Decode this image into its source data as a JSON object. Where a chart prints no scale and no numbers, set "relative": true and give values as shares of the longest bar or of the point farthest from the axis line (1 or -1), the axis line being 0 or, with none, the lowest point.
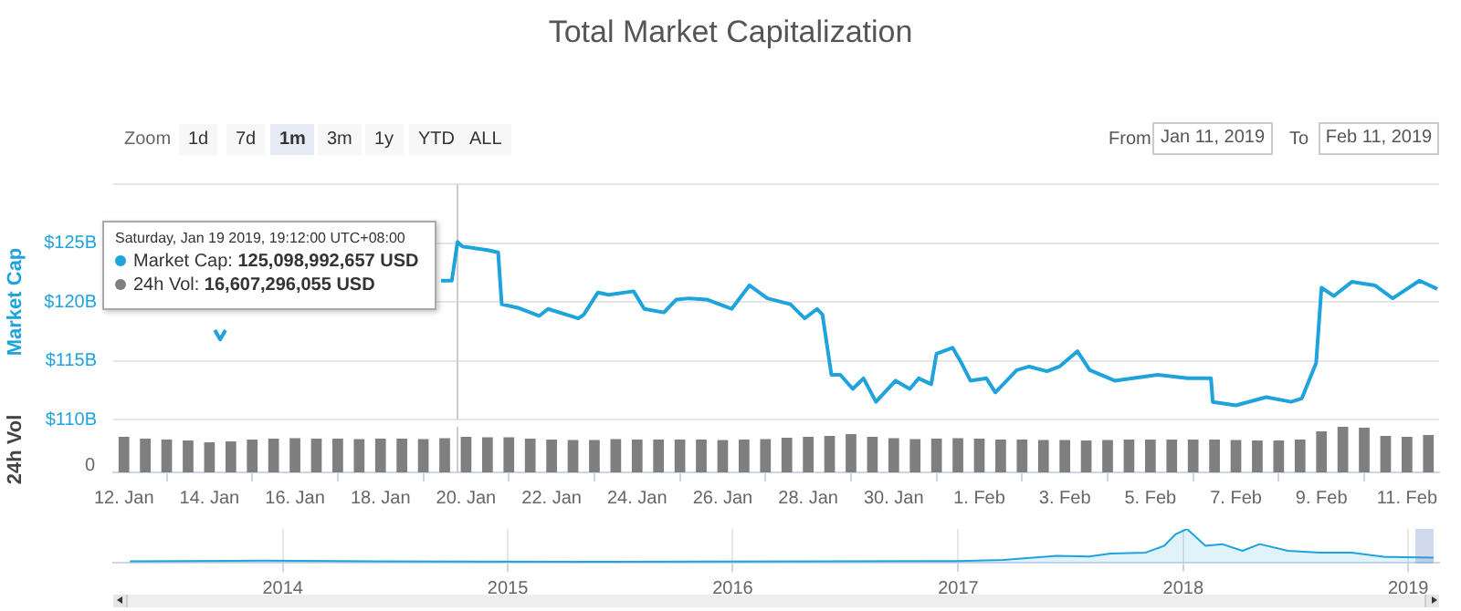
{
  "chart_data": [
    {
      "type": "line",
      "title": "Total Market Capitalization",
      "ylabel": "Market Cap",
      "color": "#1fa3dc",
      "grid": "y",
      "tick_labels": "y",
      "annotations": [
        "Zoom",
        "1d",
        "7d",
        "1m",
        "3m",
        "1y",
        "YTD",
        "ALL",
        "From",
        "Jan 11, 2019",
        "To",
        "Feb 11, 2019",
        "Saturday, Jan 19 2019, 19:12:00 UTC+08:00",
        "Market Cap: 125,098,992,657 USD",
        "24h Vol: 16,607,296,055 USD"
      ],
      "xlim": [
        "2019-01-11T18:00",
        "2019-02-11T18:00"
      ],
      "ylim": [
        110,
        130
      ],
      "yticks": [
        {
          "value": 110,
          "label": "$110B"
        },
        {
          "value": 115,
          "label": "$115B"
        },
        {
          "value": 120,
          "label": "$120B"
        },
        {
          "value": 125,
          "label": "$125B"
        },
        {
          "value": 130,
          "label": null
        }
      ],
      "ref_lines": [
        {
          "axis": "x",
          "value": "2019-01-19T19:12",
          "color": "#cccccc"
        }
      ],
      "x": [
        "2019-01-14T03:00",
        "2019-01-14T06:00",
        "2019-01-14T09:00",
        "2019-01-16T00:00",
        "2019-01-19T10:00",
        "2019-01-19T16:00",
        "2019-01-19T19:12",
        "2019-01-19T22:00",
        "2019-01-20T12:00",
        "2019-01-20T18:00",
        "2019-01-20T20:00",
        "2019-01-21T05:00",
        "2019-01-21T17:00",
        "2019-01-21T22:00",
        "2019-01-22T15:00",
        "2019-01-22T18:00",
        "2019-01-23T02:00",
        "2019-01-23T08:00",
        "2019-01-23T22:00",
        "2019-01-24T04:00",
        "2019-01-24T15:00",
        "2019-01-24T22:00",
        "2019-01-25T05:00",
        "2019-01-25T15:00",
        "2019-01-26T05:00",
        "2019-01-26T15:00",
        "2019-01-27T01:00",
        "2019-01-27T14:00",
        "2019-01-27T22:00",
        "2019-01-28T05:00",
        "2019-01-28T08:00",
        "2019-01-28T13:00",
        "2019-01-28T18:00",
        "2019-01-29T01:00",
        "2019-01-29T07:00",
        "2019-01-29T14:00",
        "2019-01-30T01:00",
        "2019-01-30T09:00",
        "2019-01-30T14:00",
        "2019-01-30T21:00",
        "2019-01-31T00:00",
        "2019-01-31T09:00",
        "2019-01-31T14:00",
        "2019-01-31T19:00",
        "2019-02-01T04:00",
        "2019-02-01T09:00",
        "2019-02-01T21:00",
        "2019-02-02T04:00",
        "2019-02-02T14:00",
        "2019-02-02T21:00",
        "2019-02-03T07:00",
        "2019-02-03T14:00",
        "2019-02-04T04:00",
        "2019-02-05T04:00",
        "2019-02-05T21:00",
        "2019-02-06T10:00",
        "2019-02-06T11:00",
        "2019-02-07T00:00",
        "2019-02-07T17:00",
        "2019-02-08T07:00",
        "2019-02-08T13:00",
        "2019-02-08T21:00",
        "2019-02-09T00:00",
        "2019-02-09T07:00",
        "2019-02-09T17:00",
        "2019-02-10T06:00",
        "2019-02-10T16:00",
        "2019-02-11T07:00",
        "2019-02-11T17:00"
      ],
      "values": [
        117.6,
        116.8,
        117.6,
        null,
        121.8,
        121.8,
        125.1,
        124.7,
        124.4,
        124.2,
        119.8,
        119.5,
        118.8,
        119.4,
        118.6,
        118.9,
        120.8,
        120.6,
        120.9,
        119.4,
        119.1,
        120.2,
        120.3,
        120.2,
        119.4,
        121.4,
        120.3,
        119.8,
        118.6,
        119.4,
        118.9,
        113.8,
        113.8,
        112.6,
        113.5,
        111.5,
        113.3,
        112.6,
        113.5,
        113.0,
        115.6,
        116.1,
        114.8,
        113.3,
        113.5,
        112.3,
        114.2,
        114.5,
        114.1,
        114.5,
        115.8,
        114.2,
        113.3,
        113.8,
        113.5,
        113.5,
        111.5,
        111.2,
        111.9,
        111.5,
        111.8,
        114.8,
        121.2,
        120.5,
        121.7,
        121.4,
        120.3,
        121.8,
        121.1
      ]
    },
    {
      "type": "bar",
      "relative": true,
      "ylabel": "24h Vol",
      "color": "#7f7f7f",
      "tick_labels": "x",
      "annotations": [
        "0"
      ],
      "ref_lines": [
        {
          "axis": "x",
          "value": "2019-01-19T19:12",
          "color": "#cccccc"
        }
      ],
      "xlim": [
        "2019-01-11T18:00",
        "2019-02-11T18:00"
      ],
      "xticks": [
        {
          "value": "2019-01-12",
          "label": "12. Jan"
        },
        {
          "value": "2019-01-14",
          "label": "14. Jan"
        },
        {
          "value": "2019-01-16",
          "label": "16. Jan"
        },
        {
          "value": "2019-01-18",
          "label": "18. Jan"
        },
        {
          "value": "2019-01-20",
          "label": "20. Jan"
        },
        {
          "value": "2019-01-22",
          "label": "22. Jan"
        },
        {
          "value": "2019-01-24",
          "label": "24. Jan"
        },
        {
          "value": "2019-01-26",
          "label": "26. Jan"
        },
        {
          "value": "2019-01-28",
          "label": "28. Jan"
        },
        {
          "value": "2019-01-30",
          "label": "30. Jan"
        },
        {
          "value": "2019-02-01",
          "label": "1. Feb"
        },
        {
          "value": "2019-02-03",
          "label": "3. Feb"
        },
        {
          "value": "2019-02-05",
          "label": "5. Feb"
        },
        {
          "value": "2019-02-07",
          "label": "7. Feb"
        },
        {
          "value": "2019-02-09",
          "label": "9. Feb"
        },
        {
          "value": "2019-02-11",
          "label": "11. Feb"
        }
      ],
      "x": [
        "2019-01-12T00:00",
        "2019-01-12T12:00",
        "2019-01-13T00:00",
        "2019-01-13T12:00",
        "2019-01-14T00:00",
        "2019-01-14T12:00",
        "2019-01-15T00:00",
        "2019-01-15T12:00",
        "2019-01-16T00:00",
        "2019-01-16T12:00",
        "2019-01-17T00:00",
        "2019-01-17T12:00",
        "2019-01-18T00:00",
        "2019-01-18T12:00",
        "2019-01-19T00:00",
        "2019-01-19T12:00",
        "2019-01-20T00:00",
        "2019-01-20T12:00",
        "2019-01-21T00:00",
        "2019-01-21T12:00",
        "2019-01-22T00:00",
        "2019-01-22T12:00",
        "2019-01-23T00:00",
        "2019-01-23T12:00",
        "2019-01-24T00:00",
        "2019-01-24T12:00",
        "2019-01-25T00:00",
        "2019-01-25T12:00",
        "2019-01-26T00:00",
        "2019-01-26T12:00",
        "2019-01-27T00:00",
        "2019-01-27T12:00",
        "2019-01-28T00:00",
        "2019-01-28T12:00",
        "2019-01-29T00:00",
        "2019-01-29T12:00",
        "2019-01-30T00:00",
        "2019-01-30T12:00",
        "2019-01-31T00:00",
        "2019-01-31T12:00",
        "2019-02-01T00:00",
        "2019-02-01T12:00",
        "2019-02-02T00:00",
        "2019-02-02T12:00",
        "2019-02-03T00:00",
        "2019-02-03T12:00",
        "2019-02-04T00:00",
        "2019-02-04T12:00",
        "2019-02-05T00:00",
        "2019-02-05T12:00",
        "2019-02-06T00:00",
        "2019-02-06T12:00",
        "2019-02-07T00:00",
        "2019-02-07T12:00",
        "2019-02-08T00:00",
        "2019-02-08T12:00",
        "2019-02-09T00:00",
        "2019-02-09T12:00",
        "2019-02-10T00:00",
        "2019-02-10T12:00",
        "2019-02-11T00:00",
        "2019-02-11T12:00"
      ],
      "values": [
        0.78,
        0.74,
        0.72,
        0.7,
        0.66,
        0.68,
        0.72,
        0.74,
        0.75,
        0.74,
        0.74,
        0.73,
        0.74,
        0.74,
        0.73,
        0.75,
        0.78,
        0.77,
        0.77,
        0.74,
        0.72,
        0.71,
        0.71,
        0.73,
        0.72,
        0.72,
        0.72,
        0.72,
        0.71,
        0.72,
        0.73,
        0.76,
        0.78,
        0.8,
        0.84,
        0.78,
        0.75,
        0.73,
        0.74,
        0.75,
        0.74,
        0.72,
        0.72,
        0.71,
        0.71,
        0.7,
        0.71,
        0.72,
        0.72,
        0.72,
        0.72,
        0.72,
        0.71,
        0.7,
        0.7,
        0.72,
        0.9,
        1.0,
        0.98,
        0.8,
        0.78,
        0.82
      ]
    },
    {
      "type": "area",
      "relative": true,
      "color": "#1fa3dc",
      "tick_labels": "x",
      "grid": "x",
      "xlim": [
        "2013-04-01",
        "2019-02-20"
      ],
      "xticks": [
        {
          "value": "2014-01-01",
          "label": "2014"
        },
        {
          "value": "2015-01-01",
          "label": "2015"
        },
        {
          "value": "2016-01-01",
          "label": "2016"
        },
        {
          "value": "2017-01-01",
          "label": "2017"
        },
        {
          "value": "2018-01-01",
          "label": "2018"
        },
        {
          "value": "2019-01-01",
          "label": "2019"
        }
      ],
      "x": [
        "2013-04-28",
        "2013-11-30",
        "2014-06-01",
        "2015-06-01",
        "2016-06-01",
        "2017-01-01",
        "2017-03-15",
        "2017-06-10",
        "2017-08-01",
        "2017-09-05",
        "2017-11-01",
        "2017-12-01",
        "2017-12-20",
        "2018-01-07",
        "2018-02-06",
        "2018-03-05",
        "2018-04-07",
        "2018-05-05",
        "2018-06-20",
        "2018-08-10",
        "2018-10-01",
        "2018-11-25",
        "2019-02-11"
      ],
      "values": [
        0.04,
        0.06,
        0.04,
        0.03,
        0.04,
        0.05,
        0.08,
        0.2,
        0.18,
        0.27,
        0.3,
        0.5,
        0.85,
        1.0,
        0.5,
        0.55,
        0.35,
        0.55,
        0.35,
        0.3,
        0.3,
        0.17,
        0.15
      ]
    }
  ]
}
